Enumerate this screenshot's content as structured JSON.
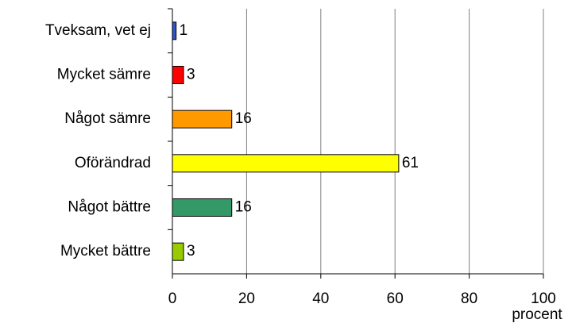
{
  "chart_data": {
    "type": "hbar",
    "categories": [
      "Tveksam, vet ej",
      "Mycket sämre",
      "Något sämre",
      "Oförändrad",
      "Något bättre",
      "Mycket bättre"
    ],
    "values": [
      1,
      3,
      16,
      61,
      16,
      3
    ],
    "colors": [
      "#3355cc",
      "#ff0000",
      "#ff9900",
      "#ffff00",
      "#339966",
      "#99cc00"
    ],
    "xlabel": "procent",
    "xlim": [
      0,
      100
    ],
    "xticks": [
      0,
      20,
      40,
      60,
      80,
      100
    ],
    "grid": true
  }
}
